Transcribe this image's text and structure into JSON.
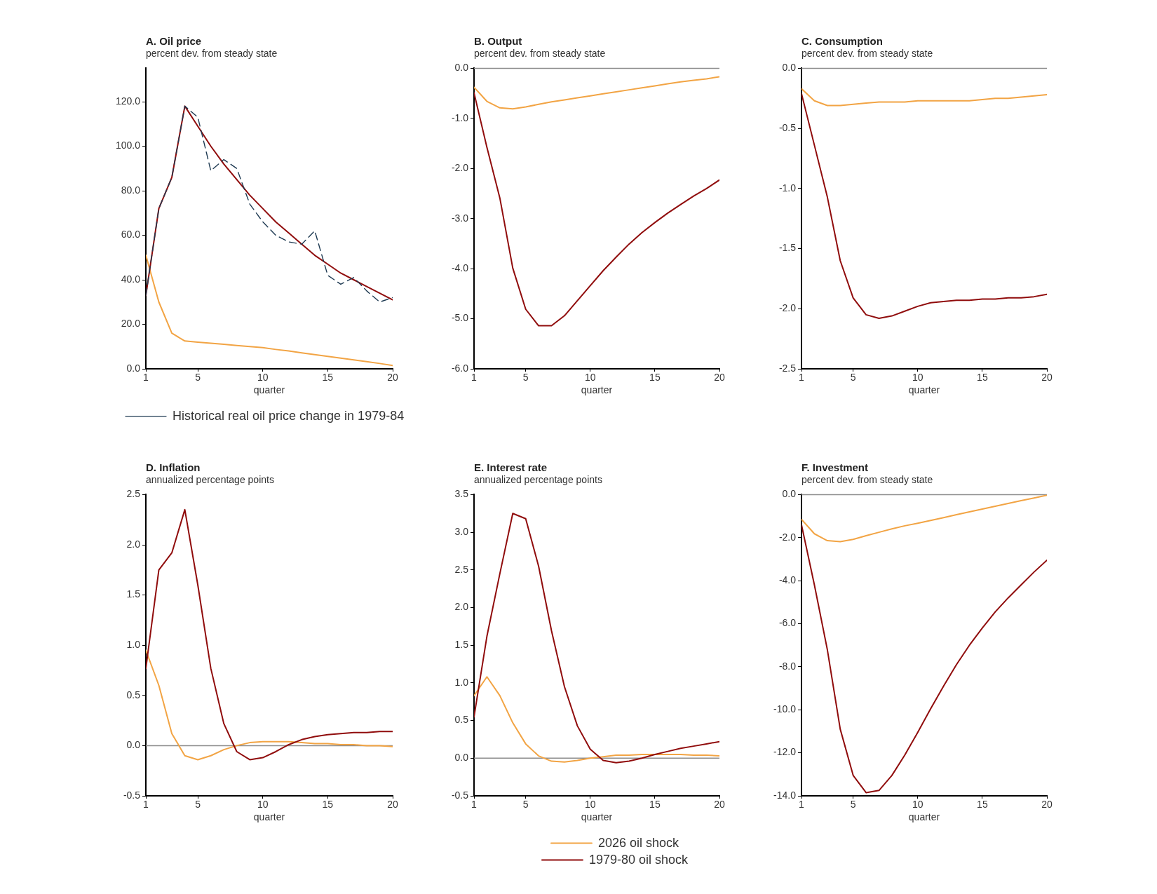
{
  "chart_data": [
    {
      "type": "line",
      "title": "A. Oil price",
      "subtitle": "percent dev. from steady state",
      "xlabel": "quarter",
      "x": [
        1,
        2,
        3,
        4,
        5,
        6,
        7,
        8,
        9,
        10,
        11,
        12,
        13,
        14,
        15,
        16,
        17,
        18,
        19,
        20
      ],
      "xlim": [
        1,
        20
      ],
      "xticks": [
        1,
        5,
        10,
        15,
        20
      ],
      "ylim": [
        0,
        135
      ],
      "yticks": [
        {
          "value": 0,
          "label": "0.0"
        },
        {
          "value": 20,
          "label": "20.0"
        },
        {
          "value": 40,
          "label": "40.0"
        },
        {
          "value": 60,
          "label": "60.0"
        },
        {
          "value": 80,
          "label": "80.0"
        },
        {
          "value": 100,
          "label": "100.0"
        },
        {
          "value": 120,
          "label": "120.0"
        }
      ],
      "legend": "bottom left",
      "series": [
        {
          "color": "#f2a444",
          "values": [
            51,
            30,
            16,
            12.5,
            12,
            11.5,
            11,
            10.5,
            10,
            9.5,
            8.7,
            8,
            7.2,
            6.4,
            5.6,
            4.8,
            4,
            3.2,
            2.4,
            1.5
          ]
        },
        {
          "color": "#900c0c",
          "values": [
            33,
            72,
            86,
            118,
            109,
            100,
            92,
            85,
            78,
            72,
            66,
            61,
            56,
            51,
            47,
            43,
            40,
            37,
            34,
            31
          ]
        },
        {
          "name": "Historical real oil price change in 1979-84",
          "color": "#1e3a52",
          "line_style": "dashed",
          "values": [
            33,
            72,
            86,
            118,
            113,
            89,
            94,
            90,
            74,
            66,
            60,
            57,
            56,
            62,
            42,
            38,
            41,
            35,
            30,
            32
          ]
        }
      ]
    },
    {
      "type": "line",
      "title": "B. Output",
      "subtitle": "percent dev. from steady state",
      "xlabel": "quarter",
      "x": [
        1,
        2,
        3,
        4,
        5,
        6,
        7,
        8,
        9,
        10,
        11,
        12,
        13,
        14,
        15,
        16,
        17,
        18,
        19,
        20
      ],
      "xlim": [
        1,
        20
      ],
      "xticks": [
        1,
        5,
        10,
        15,
        20
      ],
      "ylim": [
        -6,
        0
      ],
      "yticks": [
        {
          "value": -6,
          "label": "-6.0"
        },
        {
          "value": -5,
          "label": "-5.0"
        },
        {
          "value": -4,
          "label": "-4.0"
        },
        {
          "value": -3,
          "label": "-3.0"
        },
        {
          "value": -2,
          "label": "-2.0"
        },
        {
          "value": -1,
          "label": "-1.0"
        },
        {
          "value": 0,
          "label": "0.0"
        }
      ],
      "ref_lines": [
        {
          "axis": "y",
          "value": 0,
          "color": "#8c8c8c"
        }
      ],
      "series": [
        {
          "color": "#f2a444",
          "values": [
            -0.38,
            -0.66,
            -0.79,
            -0.81,
            -0.77,
            -0.72,
            -0.67,
            -0.63,
            -0.59,
            -0.55,
            -0.51,
            -0.47,
            -0.43,
            -0.39,
            -0.35,
            -0.31,
            -0.27,
            -0.24,
            -0.21,
            -0.17
          ]
        },
        {
          "color": "#900c0c",
          "values": [
            -0.49,
            -1.58,
            -2.59,
            -3.99,
            -4.81,
            -5.14,
            -5.14,
            -4.94,
            -4.64,
            -4.34,
            -4.04,
            -3.77,
            -3.51,
            -3.28,
            -3.08,
            -2.89,
            -2.72,
            -2.55,
            -2.4,
            -2.23
          ]
        }
      ]
    },
    {
      "type": "line",
      "title": "C. Consumption",
      "subtitle": "percent dev. from steady state",
      "xlabel": "quarter",
      "x": [
        1,
        2,
        3,
        4,
        5,
        6,
        7,
        8,
        9,
        10,
        11,
        12,
        13,
        14,
        15,
        16,
        17,
        18,
        19,
        20
      ],
      "xlim": [
        1,
        20
      ],
      "xticks": [
        1,
        5,
        10,
        15,
        20
      ],
      "ylim": [
        -2.5,
        0
      ],
      "yticks": [
        {
          "value": -2.5,
          "label": "-2.5"
        },
        {
          "value": -2,
          "label": "-2.0"
        },
        {
          "value": -1.5,
          "label": "-1.5"
        },
        {
          "value": -1,
          "label": "-1.0"
        },
        {
          "value": -0.5,
          "label": "-0.5"
        },
        {
          "value": 0,
          "label": "0.0"
        }
      ],
      "ref_lines": [
        {
          "axis": "y",
          "value": 0,
          "color": "#8c8c8c"
        }
      ],
      "series": [
        {
          "color": "#f2a444",
          "values": [
            -0.17,
            -0.27,
            -0.31,
            -0.31,
            -0.3,
            -0.29,
            -0.28,
            -0.28,
            -0.28,
            -0.27,
            -0.27,
            -0.27,
            -0.27,
            -0.27,
            -0.26,
            -0.25,
            -0.25,
            -0.24,
            -0.23,
            -0.22
          ]
        },
        {
          "color": "#900c0c",
          "values": [
            -0.21,
            -0.64,
            -1.07,
            -1.6,
            -1.91,
            -2.05,
            -2.08,
            -2.06,
            -2.02,
            -1.98,
            -1.95,
            -1.94,
            -1.93,
            -1.93,
            -1.92,
            -1.92,
            -1.91,
            -1.91,
            -1.9,
            -1.88
          ]
        }
      ]
    },
    {
      "type": "line",
      "title": "D. Inflation",
      "subtitle": "annualized percentage points",
      "xlabel": "quarter",
      "x": [
        1,
        2,
        3,
        4,
        5,
        6,
        7,
        8,
        9,
        10,
        11,
        12,
        13,
        14,
        15,
        16,
        17,
        18,
        19,
        20
      ],
      "xlim": [
        1,
        20
      ],
      "xticks": [
        1,
        5,
        10,
        15,
        20
      ],
      "ylim": [
        -0.5,
        2.5
      ],
      "yticks": [
        {
          "value": -0.5,
          "label": "-0.5"
        },
        {
          "value": 0,
          "label": "0.0"
        },
        {
          "value": 0.5,
          "label": "0.5"
        },
        {
          "value": 1,
          "label": "1.0"
        },
        {
          "value": 1.5,
          "label": "1.5"
        },
        {
          "value": 2,
          "label": "2.0"
        },
        {
          "value": 2.5,
          "label": "2.5"
        }
      ],
      "ref_lines": [
        {
          "axis": "y",
          "value": 0,
          "color": "#8c8c8c"
        }
      ],
      "series": [
        {
          "color": "#f2a444",
          "values": [
            0.95,
            0.6,
            0.12,
            -0.1,
            -0.14,
            -0.1,
            -0.04,
            0.0,
            0.03,
            0.04,
            0.04,
            0.04,
            0.03,
            0.02,
            0.02,
            0.01,
            0.01,
            0.0,
            0.0,
            -0.01
          ]
        },
        {
          "color": "#900c0c",
          "values": [
            0.77,
            1.75,
            1.92,
            2.35,
            1.6,
            0.77,
            0.22,
            -0.06,
            -0.14,
            -0.12,
            -0.06,
            0.01,
            0.06,
            0.09,
            0.11,
            0.12,
            0.13,
            0.13,
            0.14,
            0.14
          ]
        }
      ]
    },
    {
      "type": "line",
      "title": "E. Interest rate",
      "subtitle": "annualized percentage points",
      "xlabel": "quarter",
      "x": [
        1,
        2,
        3,
        4,
        5,
        6,
        7,
        8,
        9,
        10,
        11,
        12,
        13,
        14,
        15,
        16,
        17,
        18,
        19,
        20
      ],
      "xlim": [
        1,
        20
      ],
      "xticks": [
        1,
        5,
        10,
        15,
        20
      ],
      "ylim": [
        -0.5,
        3.5
      ],
      "yticks": [
        {
          "value": -0.5,
          "label": "-0.5"
        },
        {
          "value": 0,
          "label": "0.0"
        },
        {
          "value": 0.5,
          "label": "0.5"
        },
        {
          "value": 1,
          "label": "1.0"
        },
        {
          "value": 1.5,
          "label": "1.5"
        },
        {
          "value": 2,
          "label": "2.0"
        },
        {
          "value": 2.5,
          "label": "2.5"
        },
        {
          "value": 3,
          "label": "3.0"
        },
        {
          "value": 3.5,
          "label": "3.5"
        }
      ],
      "ref_lines": [
        {
          "axis": "y",
          "value": 0,
          "color": "#8c8c8c"
        }
      ],
      "legend": "bottom",
      "series": [
        {
          "name": "2026 oil shock",
          "color": "#f2a444",
          "values": [
            0.83,
            1.08,
            0.83,
            0.47,
            0.19,
            0.03,
            -0.04,
            -0.05,
            -0.03,
            0.0,
            0.02,
            0.04,
            0.04,
            0.05,
            0.05,
            0.05,
            0.05,
            0.04,
            0.04,
            0.03
          ]
        },
        {
          "name": "1979-80 oil shock",
          "color": "#900c0c",
          "values": [
            0.55,
            1.62,
            2.45,
            3.25,
            3.18,
            2.55,
            1.69,
            0.95,
            0.43,
            0.12,
            -0.03,
            -0.06,
            -0.04,
            0.0,
            0.05,
            0.09,
            0.13,
            0.16,
            0.19,
            0.22
          ]
        }
      ]
    },
    {
      "type": "line",
      "title": "F. Investment",
      "subtitle": "percent dev. from steady state",
      "xlabel": "quarter",
      "x": [
        1,
        2,
        3,
        4,
        5,
        6,
        7,
        8,
        9,
        10,
        11,
        12,
        13,
        14,
        15,
        16,
        17,
        18,
        19,
        20
      ],
      "xlim": [
        1,
        20
      ],
      "xticks": [
        1,
        5,
        10,
        15,
        20
      ],
      "ylim": [
        -14,
        0
      ],
      "yticks": [
        {
          "value": -14,
          "label": "-14.0"
        },
        {
          "value": -12,
          "label": "-12.0"
        },
        {
          "value": -10,
          "label": "-10.0"
        },
        {
          "value": -8,
          "label": "-8.0"
        },
        {
          "value": -6,
          "label": "-6.0"
        },
        {
          "value": -4,
          "label": "-4.0"
        },
        {
          "value": -2,
          "label": "-2.0"
        },
        {
          "value": 0,
          "label": "0.0"
        }
      ],
      "ref_lines": [
        {
          "axis": "y",
          "value": 0,
          "color": "#8c8c8c"
        }
      ],
      "series": [
        {
          "color": "#f2a444",
          "values": [
            -1.15,
            -1.82,
            -2.14,
            -2.19,
            -2.08,
            -1.91,
            -1.75,
            -1.59,
            -1.45,
            -1.33,
            -1.2,
            -1.07,
            -0.93,
            -0.8,
            -0.67,
            -0.54,
            -0.41,
            -0.28,
            -0.16,
            -0.03
          ]
        },
        {
          "color": "#900c0c",
          "values": [
            -1.4,
            -4.2,
            -7.2,
            -10.9,
            -13.05,
            -13.85,
            -13.75,
            -13.05,
            -12.1,
            -11.05,
            -9.95,
            -8.9,
            -7.9,
            -7.0,
            -6.2,
            -5.45,
            -4.8,
            -4.2,
            -3.6,
            -3.05
          ]
        }
      ]
    }
  ]
}
